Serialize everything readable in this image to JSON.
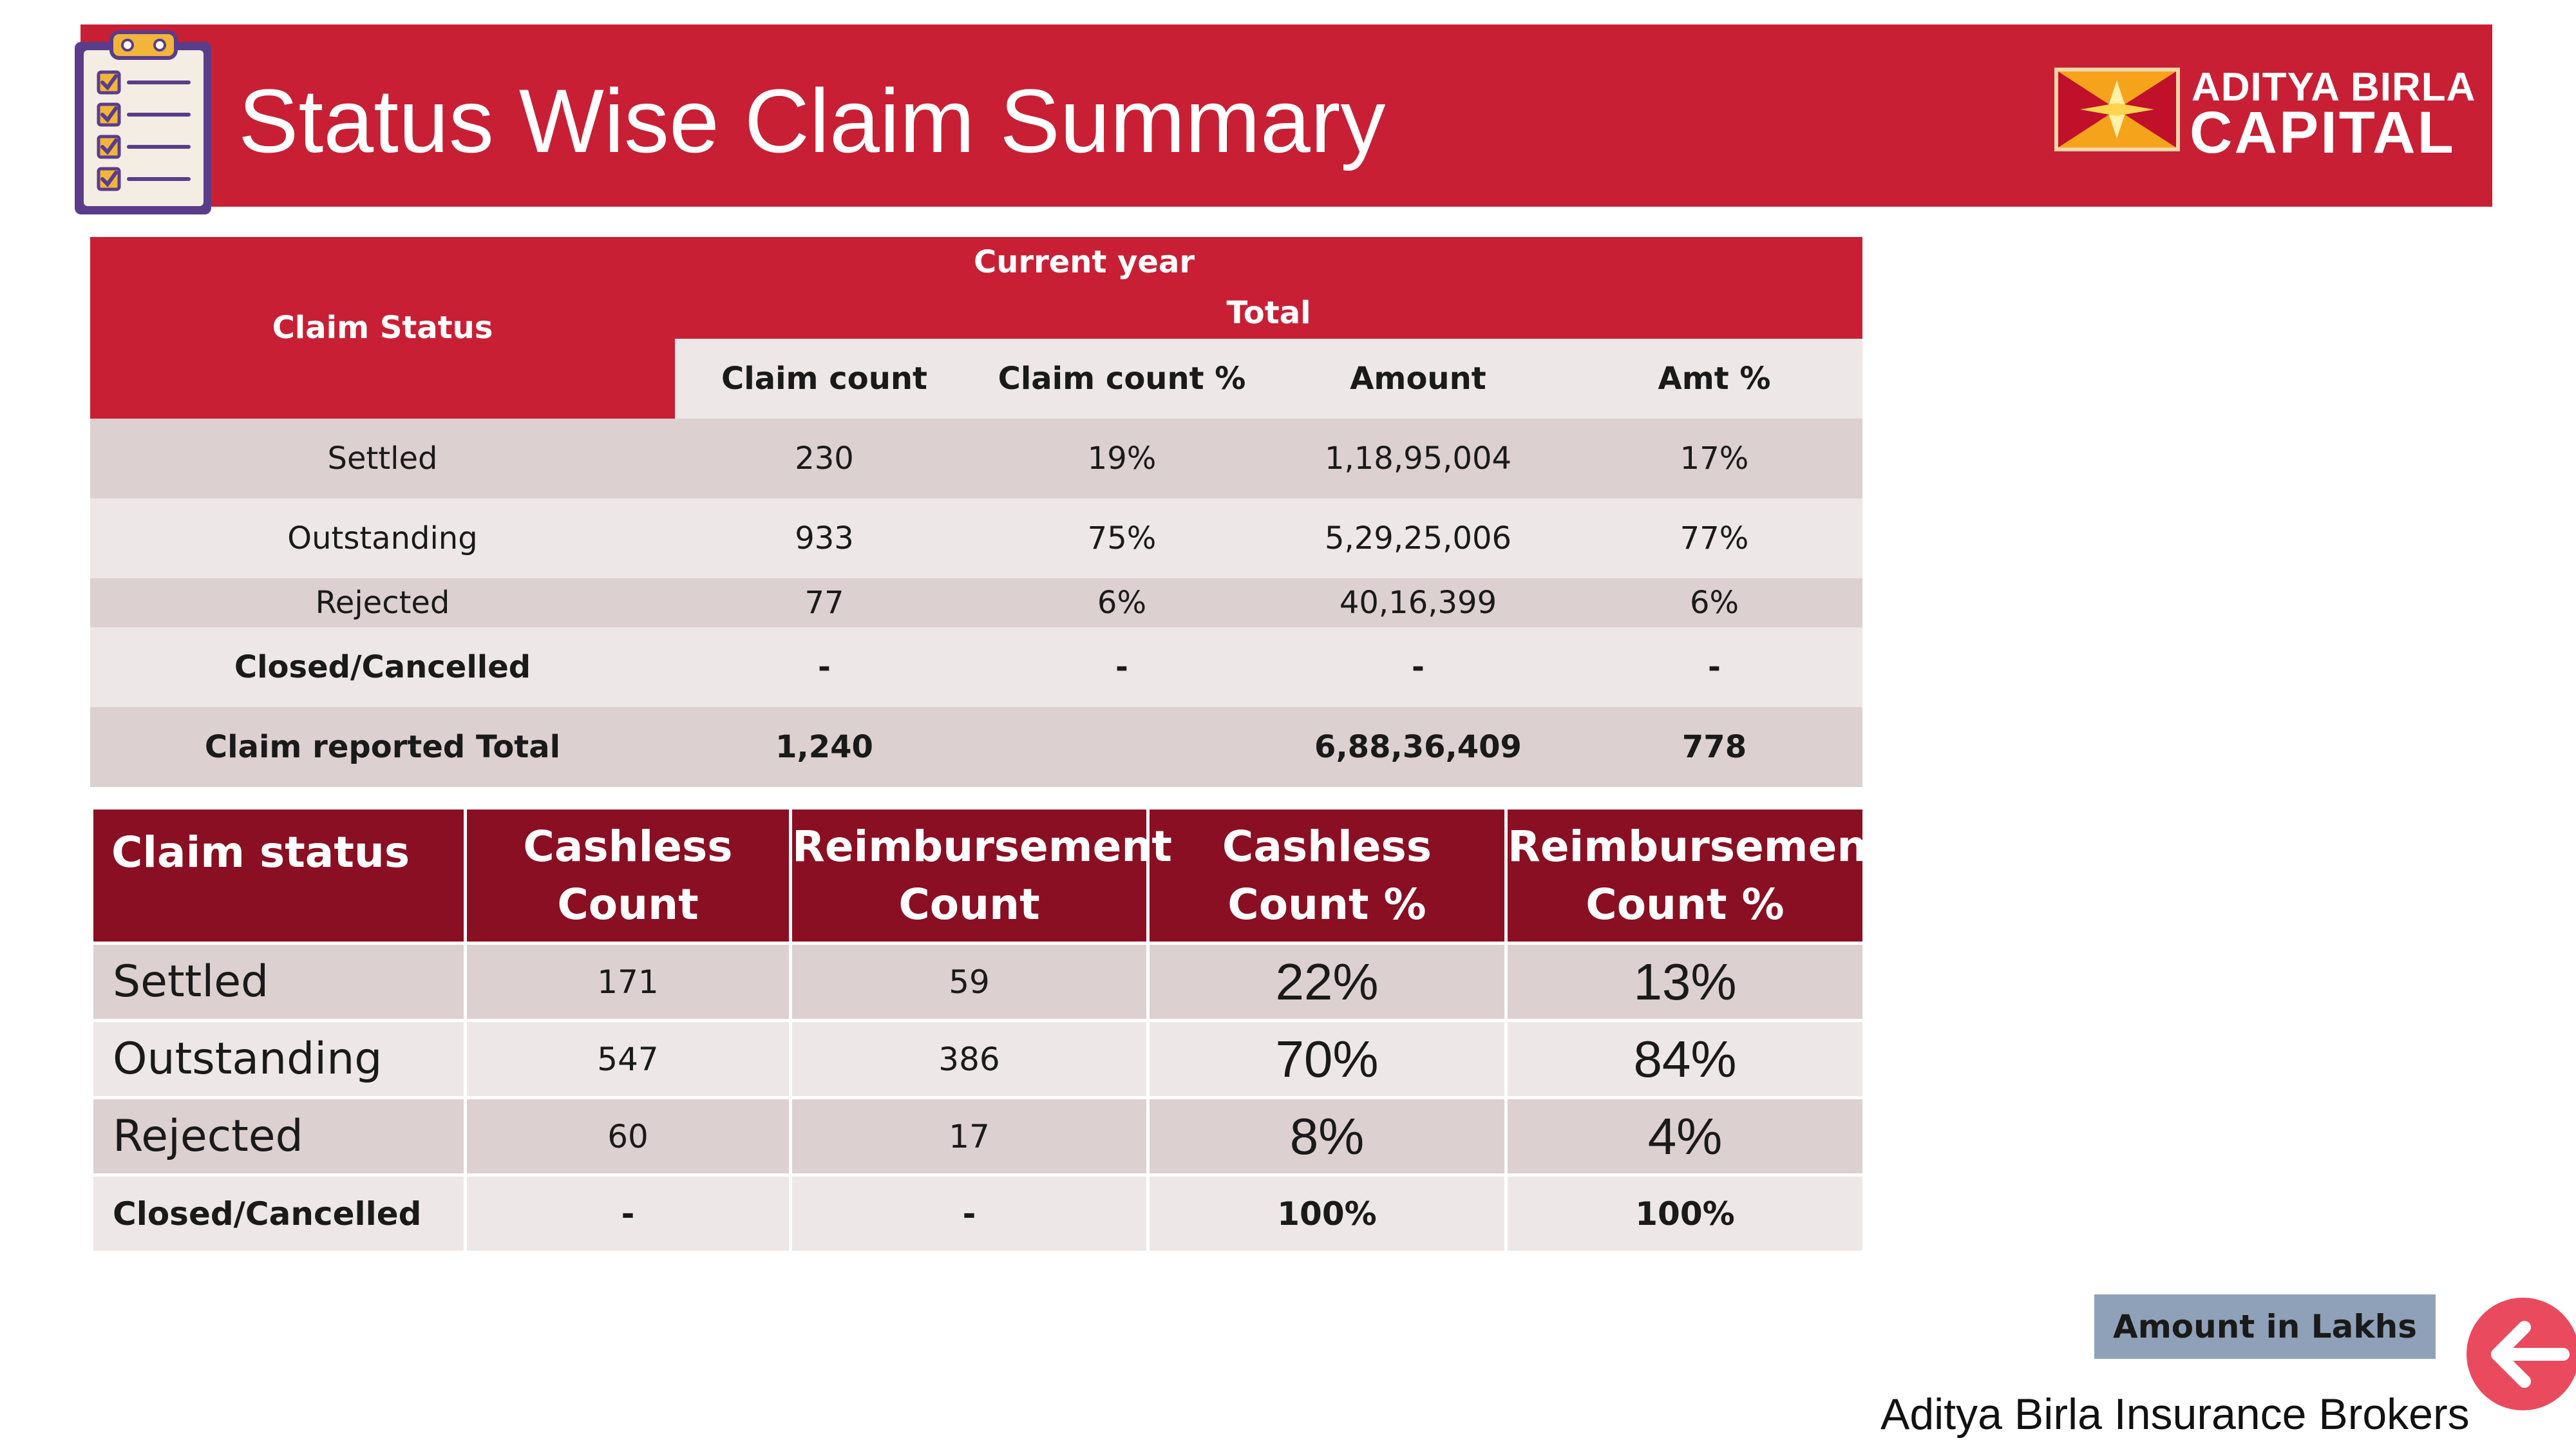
{
  "header": {
    "title": "Status Wise Claim Summary",
    "brand_line1": "ADITYA BIRLA",
    "brand_line2": "CAPITAL",
    "icons": [
      "clipboard-checklist-icon",
      "aditya-birla-logo-mark"
    ]
  },
  "colors": {
    "banner": "#c81f35",
    "header_dark": "#8a0f22",
    "row_dark": "#dcd0d0",
    "row_light": "#ede7e7",
    "note_box": "#8ea1b8",
    "back_button": "#ea4a5e"
  },
  "summary_table": {
    "group_header": "Current year",
    "sub_header": "Total",
    "status_header": "Claim Status",
    "columns": [
      "Claim count",
      "Claim count  %",
      "Amount",
      "Amt %"
    ],
    "rows": [
      {
        "status": "Settled",
        "count": "230",
        "count_pct": "19%",
        "amount": "1,18,95,004",
        "amt_pct": "17%"
      },
      {
        "status": "Outstanding",
        "count": "933",
        "count_pct": "75%",
        "amount": "5,29,25,006",
        "amt_pct": "77%"
      },
      {
        "status": "Rejected",
        "count": "77",
        "count_pct": "6%",
        "amount": "40,16,399",
        "amt_pct": "6%"
      },
      {
        "status": "Closed/Cancelled",
        "count": "-",
        "count_pct": "-",
        "amount": "-",
        "amt_pct": "-"
      }
    ],
    "total": {
      "status": "Claim reported Total",
      "count": "1,240",
      "count_pct": "",
      "amount": "6,88,36,409",
      "amt_pct": "778"
    }
  },
  "split_table": {
    "headers": {
      "status": "Claim status",
      "cashless_l1": "Cashless",
      "cashless_l2": "Count",
      "reimb_l1": "Reimbursement",
      "reimb_l2": "Count",
      "cashless_pct_l1": "Cashless",
      "cashless_pct_l2": "Count %",
      "reimb_pct_l1": "Reimbursement",
      "reimb_pct_l2": "Count %"
    },
    "rows": [
      {
        "status": "Settled",
        "cashless": "171",
        "reimb": "59",
        "cashless_pct": "22%",
        "reimb_pct": "13%"
      },
      {
        "status": "Outstanding",
        "cashless": "547",
        "reimb": "386",
        "cashless_pct": "70%",
        "reimb_pct": "84%"
      },
      {
        "status": "Rejected",
        "cashless": "60",
        "reimb": "17",
        "cashless_pct": "8%",
        "reimb_pct": "4%"
      },
      {
        "status": "Closed/Cancelled",
        "cashless": "-",
        "reimb": "-",
        "cashless_pct": "100%",
        "reimb_pct": "100%"
      }
    ]
  },
  "footer": {
    "amount_note": "Amount in Lakhs",
    "company": "Aditya Birla Insurance Brokers",
    "back_icon": "arrow-left-icon"
  }
}
